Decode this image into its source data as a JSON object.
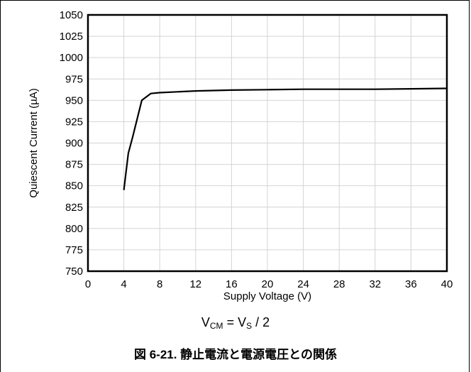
{
  "chart_data": {
    "type": "line",
    "xlabel": "Supply Voltage (V)",
    "ylabel": "Quiescent Current (µA)",
    "xlim": [
      0,
      40
    ],
    "ylim": [
      750,
      1050
    ],
    "xticks": [
      0,
      4,
      8,
      12,
      16,
      20,
      24,
      28,
      32,
      36,
      40
    ],
    "yticks": [
      750,
      775,
      800,
      825,
      850,
      875,
      900,
      925,
      950,
      975,
      1000,
      1025,
      1050
    ],
    "grid": true,
    "series": [
      {
        "x": [
          4,
          4.5,
          5,
          6,
          7,
          8,
          10,
          12,
          14,
          16,
          20,
          24,
          28,
          32,
          36,
          40
        ],
        "y": [
          845,
          888,
          908,
          950,
          958,
          959,
          960,
          961,
          961.5,
          962,
          962.5,
          963,
          963,
          963,
          963.5,
          964
        ]
      }
    ]
  },
  "condition": {
    "v": "V",
    "cm": "CM",
    "eq": " = V",
    "s": "S",
    "tail": " / 2"
  },
  "caption": "図 6-21. 静止電流と電源電圧との関係"
}
